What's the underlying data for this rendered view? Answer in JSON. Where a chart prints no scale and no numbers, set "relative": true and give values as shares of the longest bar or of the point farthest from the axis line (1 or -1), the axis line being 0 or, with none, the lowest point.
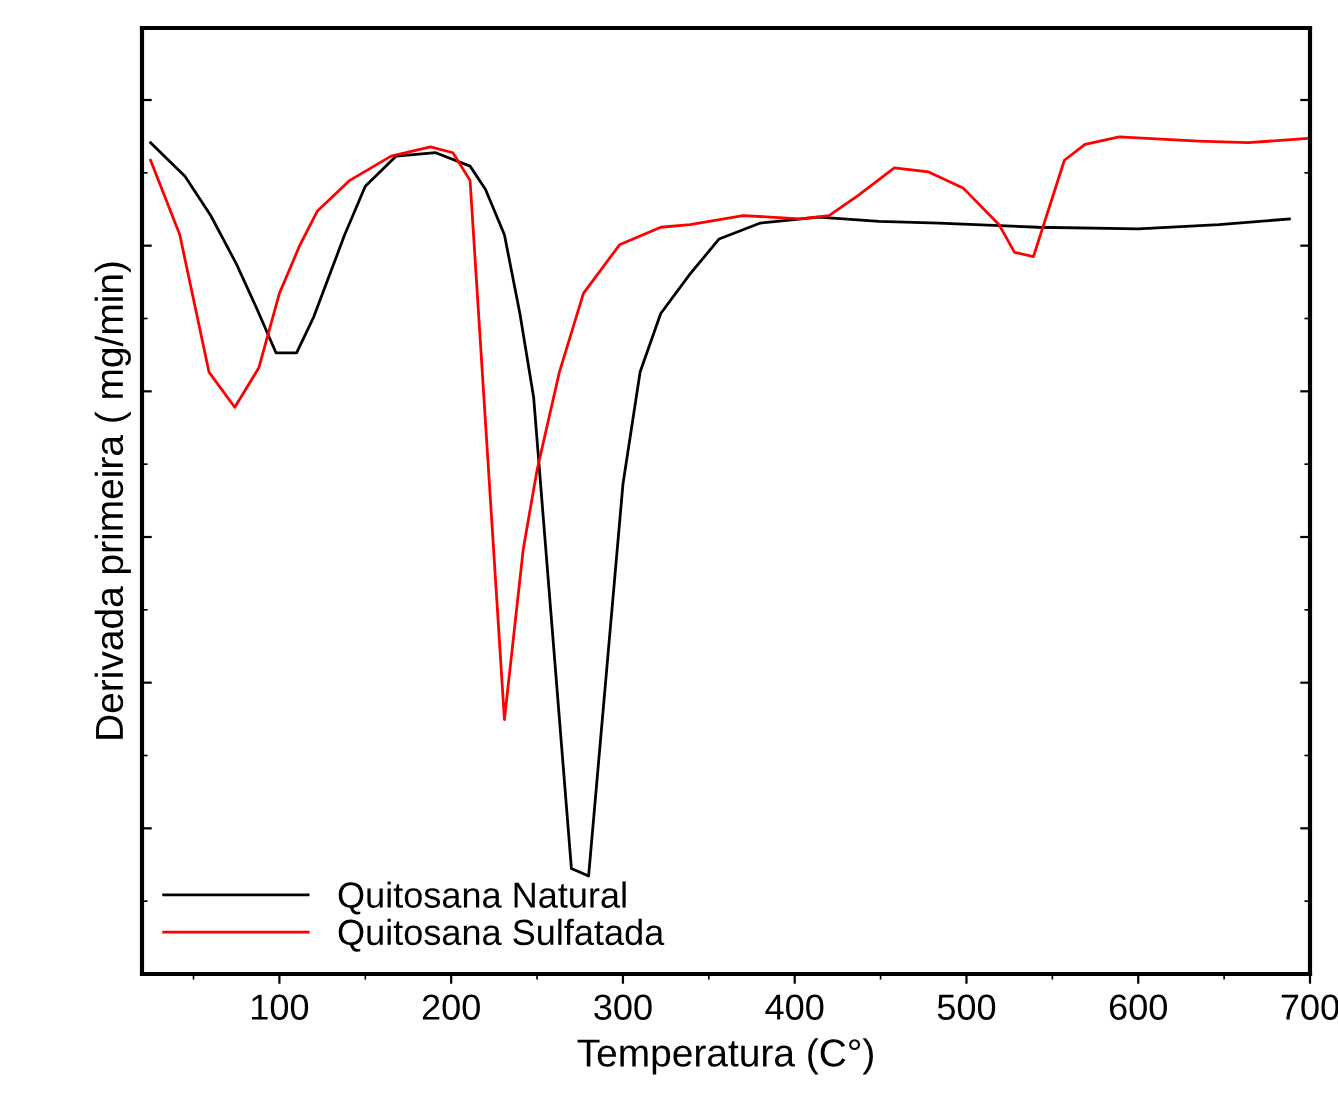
{
  "chart_data": {
    "type": "line",
    "xlabel": "Temperatura (C°)",
    "ylabel": "Derivada primeira ( mg/min)",
    "relative": true,
    "xlim": [
      20,
      700
    ],
    "xticks": [
      100,
      200,
      300,
      400,
      500,
      600,
      700
    ],
    "tick_labels": "x",
    "legend": "bottom left",
    "grid": false,
    "series": [
      {
        "name": "Quitosana Natural",
        "color": "#000000",
        "x": [
          25,
          45,
          60,
          75,
          87,
          98,
          110,
          120,
          138,
          150,
          168,
          191,
          211,
          220,
          231,
          240,
          248,
          270,
          280,
          300,
          310,
          322,
          339,
          356,
          380,
          414,
          449,
          484,
          542,
          600,
          647,
          688
        ],
        "values": [
          0.993,
          0.953,
          0.906,
          0.848,
          0.794,
          0.742,
          0.742,
          0.785,
          0.883,
          0.941,
          0.977,
          0.981,
          0.965,
          0.937,
          0.883,
          0.789,
          0.689,
          0.126,
          0.117,
          0.585,
          0.719,
          0.789,
          0.836,
          0.878,
          0.897,
          0.904,
          0.899,
          0.897,
          0.892,
          0.89,
          0.895,
          0.902
        ]
      },
      {
        "name": "Quitosana Sulfatada",
        "color": "#ff0000",
        "x": [
          25,
          42,
          59,
          74,
          88,
          100,
          112,
          122,
          141,
          165,
          188,
          201,
          211,
          231,
          242,
          250,
          263,
          277,
          298,
          322,
          339,
          370,
          403,
          420,
          437,
          458,
          478,
          498,
          519,
          528,
          539,
          557,
          569,
          589,
          635,
          664,
          698
        ],
        "values": [
          0.972,
          0.883,
          0.719,
          0.677,
          0.724,
          0.813,
          0.871,
          0.911,
          0.948,
          0.977,
          0.988,
          0.981,
          0.948,
          0.304,
          0.508,
          0.602,
          0.719,
          0.813,
          0.871,
          0.892,
          0.895,
          0.906,
          0.902,
          0.906,
          0.93,
          0.963,
          0.958,
          0.939,
          0.895,
          0.862,
          0.857,
          0.972,
          0.991,
          1.0,
          0.995,
          0.993,
          0.998
        ]
      }
    ]
  }
}
